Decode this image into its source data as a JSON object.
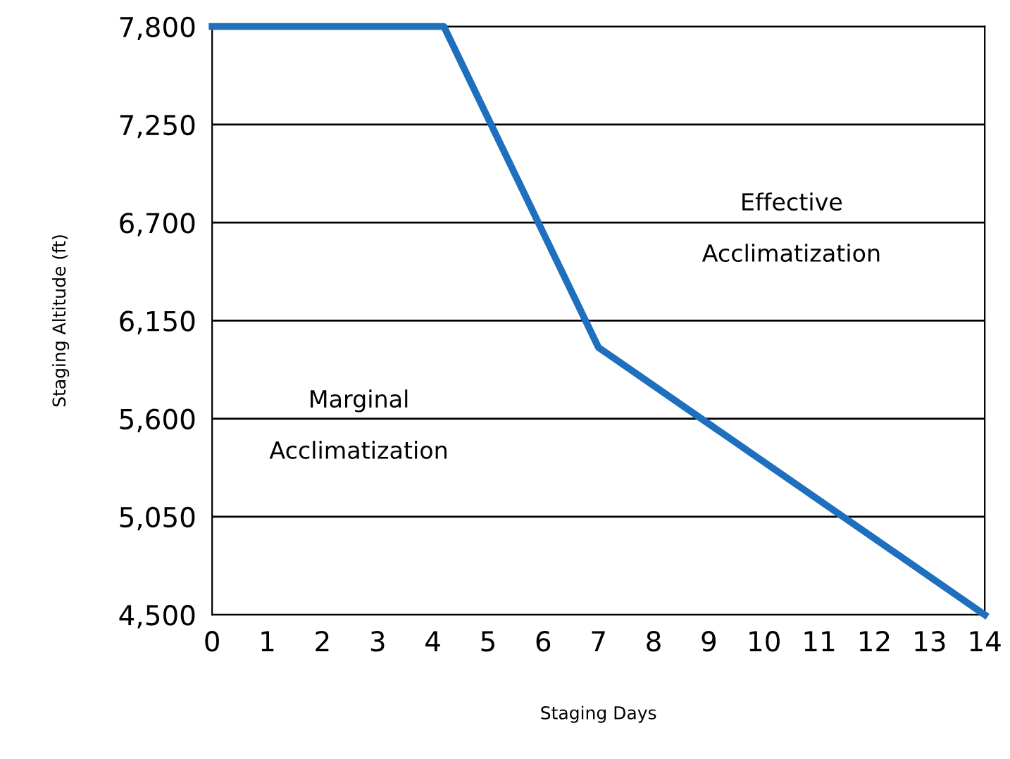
{
  "chart_data": {
    "type": "line",
    "xlabel": "Staging Days",
    "ylabel": "Staging Altitude (ft)",
    "x": [
      0,
      4.2,
      7,
      14
    ],
    "series": [
      {
        "color": "#1f6fbf",
        "values": [
          7800,
          7800,
          6000,
          4500
        ]
      }
    ],
    "xlim": [
      0,
      14
    ],
    "xticks": [
      0,
      1,
      2,
      3,
      4,
      5,
      6,
      7,
      8,
      9,
      10,
      11,
      12,
      13,
      14
    ],
    "ylim": [
      4500,
      7800
    ],
    "yticks": [
      {
        "value": 4500,
        "label": "4,500"
      },
      {
        "value": 5050,
        "label": "5,050"
      },
      {
        "value": 5600,
        "label": "5,600"
      },
      {
        "value": 6150,
        "label": "6,150"
      },
      {
        "value": 6700,
        "label": "6,700"
      },
      {
        "value": 7250,
        "label": "7,250"
      },
      {
        "value": 7800,
        "label": "7,800"
      }
    ],
    "grid": "y",
    "marker": "none",
    "line_style": "solid",
    "annotations": [
      "Effective\nAcclimatization",
      "Marginal\nAcclimatization"
    ]
  }
}
